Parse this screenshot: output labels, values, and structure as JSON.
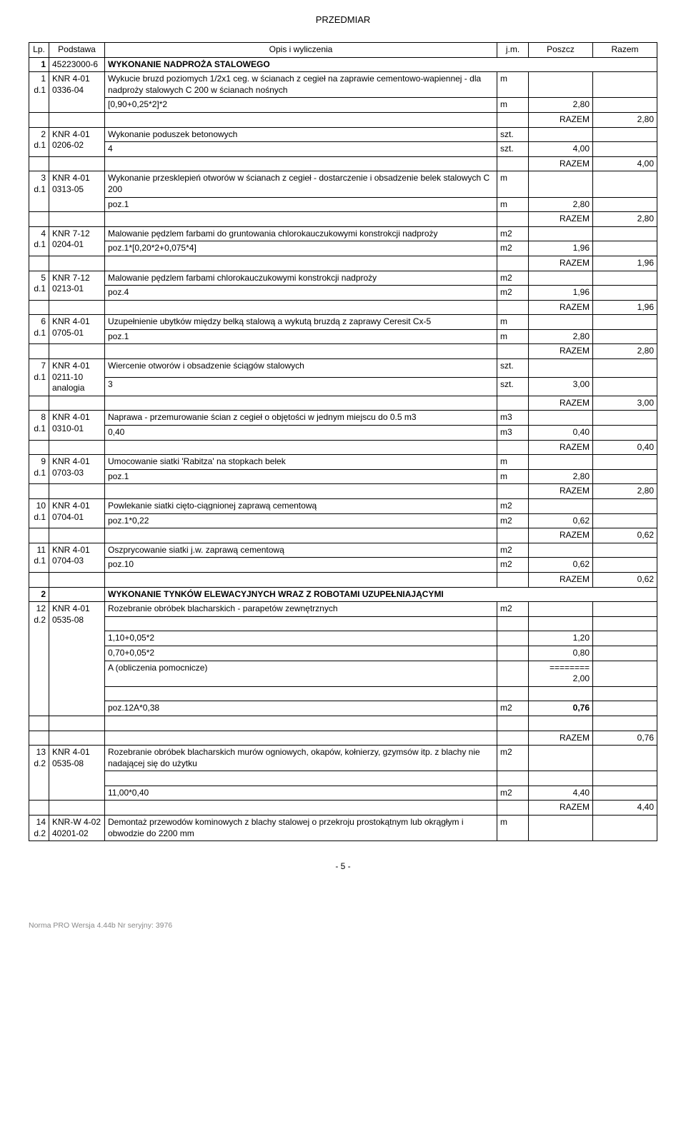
{
  "doc_title": "PRZEDMIAR",
  "header": {
    "lp": "Lp.",
    "podstawa": "Podstawa",
    "opis": "Opis i wyliczenia",
    "jm": "j.m.",
    "poszcz": "Poszcz",
    "razem": "Razem"
  },
  "razem_label": "RAZEM",
  "section1": {
    "number": "1",
    "code": "45223000-6",
    "title": "WYKONANIE NADPROŻA STALOWEGO"
  },
  "row1": {
    "lp": "1",
    "d": "d.1",
    "pod": "KNR 4-01 0336-04",
    "opis": "Wykucie bruzd poziomych 1/2x1 ceg. w ścianach z cegieł na zaprawie cementowo-wapiennej - dla nadproży stalowych C 200 w ścianach nośnych",
    "jm": "m",
    "calc": "[0,90+0,25*2]*2",
    "calc_jm": "m",
    "calc_val": "2,80",
    "razem": "2,80"
  },
  "row2": {
    "lp": "2",
    "d": "d.1",
    "pod": "KNR 4-01 0206-02",
    "opis": "Wykonanie poduszek betonowych",
    "jm": "szt.",
    "calc": "4",
    "calc_jm": "szt.",
    "calc_val": "4,00",
    "razem": "4,00"
  },
  "row3": {
    "lp": "3",
    "d": "d.1",
    "pod": "KNR 4-01 0313-05",
    "opis": "Wykonanie przesklepień otworów w ścianach z cegieł - dostarczenie i obsadzenie belek stalowych C 200",
    "jm": "m",
    "calc": "poz.1",
    "calc_jm": "m",
    "calc_val": "2,80",
    "razem": "2,80"
  },
  "row4": {
    "lp": "4",
    "d": "d.1",
    "pod": "KNR 7-12 0204-01",
    "opis": "Malowanie pędzlem farbami do gruntowania chlorokauczukowymi konstrokcji nadproży",
    "jm": "m2",
    "calc": "poz.1*[0,20*2+0,075*4]",
    "calc_jm": "m2",
    "calc_val": "1,96",
    "razem": "1,96"
  },
  "row5": {
    "lp": "5",
    "d": "d.1",
    "pod": "KNR 7-12 0213-01",
    "opis": "Malowanie pędzlem farbami chlorokauczukowymi  konstrokcji nadproży",
    "jm": "m2",
    "calc": "poz.4",
    "calc_jm": "m2",
    "calc_val": "1,96",
    "razem": "1,96"
  },
  "row6": {
    "lp": "6",
    "d": "d.1",
    "pod": "KNR 4-01 0705-01",
    "opis": "Uzupełnienie ubytków między belką stalową a wykutą bruzdą  z zaprawy Ceresit Cx-5",
    "jm": "m",
    "calc": "poz.1",
    "calc_jm": "m",
    "calc_val": "2,80",
    "razem": "2,80"
  },
  "row7": {
    "lp": "7",
    "d": "d.1",
    "pod": "KNR 4-01 0211-10 analogia",
    "opis": "Wiercenie otworów i obsadzenie ściągów stalowych",
    "jm": "szt.",
    "calc": "3",
    "calc_jm": "szt.",
    "calc_val": "3,00",
    "razem": "3,00"
  },
  "row8": {
    "lp": "8",
    "d": "d.1",
    "pod": "KNR 4-01 0310-01",
    "opis": "Naprawa - przemurowanie ścian z cegieł o objętości w jednym miejscu do 0.5 m3",
    "jm": "m3",
    "calc": "0,40",
    "calc_jm": "m3",
    "calc_val": "0,40",
    "razem": "0,40"
  },
  "row9": {
    "lp": "9",
    "d": "d.1",
    "pod": "KNR 4-01 0703-03",
    "opis": "Umocowanie siatki 'Rabitza' na stopkach belek",
    "jm": "m",
    "calc": "poz.1",
    "calc_jm": "m",
    "calc_val": "2,80",
    "razem": "2,80"
  },
  "row10": {
    "lp": "10",
    "d": "d.1",
    "pod": "KNR 4-01 0704-01",
    "opis": "Powlekanie siatki cięto-ciągnionej zaprawą cementową",
    "jm": "m2",
    "calc": "poz.1*0,22",
    "calc_jm": "m2",
    "calc_val": "0,62",
    "razem": "0,62"
  },
  "row11": {
    "lp": "11",
    "d": "d.1",
    "pod": "KNR 4-01 0704-03",
    "opis": "Oszprycowanie siatki j.w. zaprawą cementową",
    "jm": "m2",
    "calc": "poz.10",
    "calc_jm": "m2",
    "calc_val": "0,62",
    "razem": "0,62"
  },
  "section2": {
    "number": "2",
    "title": "WYKONANIE TYNKÓW ELEWACYJNYCH WRAZ Z ROBOTAMI UZUPEŁNIAJĄCYMI"
  },
  "row12": {
    "lp": "12",
    "d": "d.2",
    "pod": "KNR 4-01 0535-08",
    "opis": "Rozebranie obróbek blacharskich - parapetów zewnętrznych",
    "jm": "m2",
    "calc_lines": [
      {
        "expr": "1,10+0,05*2",
        "val": "1,20"
      },
      {
        "expr": "0,70+0,05*2",
        "val": "0,80"
      },
      {
        "expr": "A  (obliczenia pomocnicze)",
        "val": "========"
      },
      {
        "expr": "",
        "val": "2,00"
      }
    ],
    "final_calc": "poz.12A*0,38",
    "final_jm": "m2",
    "final_val": "0,76",
    "razem": "0,76"
  },
  "row13": {
    "lp": "13",
    "d": "d.2",
    "pod": "KNR 4-01 0535-08",
    "opis": "Rozebranie obróbek blacharskich murów ogniowych, okapów, kołnierzy, gzymsów itp. z blachy nie nadającej się do użytku",
    "jm": "m2",
    "calc": "11,00*0,40",
    "calc_jm": "m2",
    "calc_val": "4,40",
    "razem": "4,40"
  },
  "row14": {
    "lp": "14",
    "d": "d.2",
    "pod": "KNR-W 4-02 40201-02",
    "opis": "Demontaż przewodów kominowych z blachy stalowej o przekroju prostokątnym lub okrągłym i obwodzie do 2200 mm",
    "jm": "m"
  },
  "page_number": "- 5 -",
  "footer_note": "Norma PRO Wersja 4.44b Nr seryjny: 3976"
}
